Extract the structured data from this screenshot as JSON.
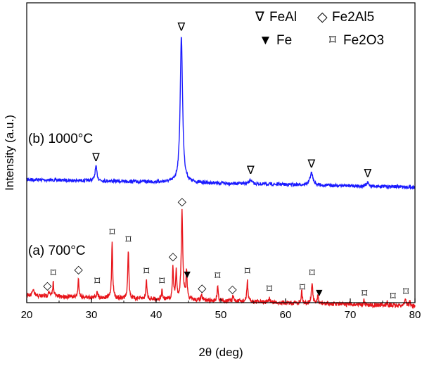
{
  "chart_data": {
    "type": "line",
    "xlabel": "2θ (deg)",
    "ylabel": "Intensity (a.u.)",
    "xlim": [
      20,
      80
    ],
    "x_ticks": [
      20,
      30,
      40,
      50,
      60,
      70,
      80
    ],
    "y_ticks_labeled": false,
    "grid": false,
    "legend": {
      "placement": "top-right",
      "entries": [
        {
          "symbol": "∇",
          "label": "FeAl"
        },
        {
          "symbol": "◇",
          "label": "Fe2Al5"
        },
        {
          "symbol": "▼",
          "label": "Fe"
        },
        {
          "symbol": "⌑",
          "label": "Fe2O3"
        }
      ]
    },
    "series": [
      {
        "name": "(b) 1000°C",
        "color": "#1a1aff",
        "baseline": 255,
        "noise": 2.2,
        "slope": -0.18,
        "peaks": [
          {
            "x": 30.7,
            "height": 20,
            "width": 0.18
          },
          {
            "x": 43.9,
            "height": 208,
            "width": 0.22
          },
          {
            "x": 54.6,
            "height": 6,
            "width": 0.2
          },
          {
            "x": 64.0,
            "height": 17,
            "width": 0.28
          },
          {
            "x": 72.7,
            "height": 5,
            "width": 0.2
          }
        ],
        "markers": [
          {
            "x": 30.7,
            "symbol": "∇"
          },
          {
            "x": 43.9,
            "symbol": "∇"
          },
          {
            "x": 54.6,
            "symbol": "∇"
          },
          {
            "x": 64.0,
            "symbol": "∇"
          },
          {
            "x": 72.7,
            "symbol": "∇"
          }
        ]
      },
      {
        "name": "(a) 700°C",
        "color": "#e8151b",
        "baseline": 420,
        "noise": 3.0,
        "slope": -0.25,
        "peaks": [
          {
            "x": 21.0,
            "height": 10,
            "width": 0.12
          },
          {
            "x": 23.4,
            "height": 8,
            "width": 0.1
          },
          {
            "x": 24.1,
            "height": 20,
            "width": 0.1
          },
          {
            "x": 28.0,
            "height": 26,
            "width": 0.1
          },
          {
            "x": 30.9,
            "height": 10,
            "width": 0.1
          },
          {
            "x": 33.2,
            "height": 80,
            "width": 0.1
          },
          {
            "x": 35.7,
            "height": 70,
            "width": 0.1
          },
          {
            "x": 38.5,
            "height": 26,
            "width": 0.1
          },
          {
            "x": 40.9,
            "height": 12,
            "width": 0.1
          },
          {
            "x": 42.6,
            "height": 45,
            "width": 0.1
          },
          {
            "x": 43.1,
            "height": 40,
            "width": 0.1
          },
          {
            "x": 44.0,
            "height": 125,
            "width": 0.14
          },
          {
            "x": 44.7,
            "height": 38,
            "width": 0.1
          },
          {
            "x": 47.0,
            "height": 8,
            "width": 0.1
          },
          {
            "x": 49.5,
            "height": 22,
            "width": 0.1
          },
          {
            "x": 51.9,
            "height": 8,
            "width": 0.1
          },
          {
            "x": 54.1,
            "height": 30,
            "width": 0.1
          },
          {
            "x": 57.5,
            "height": 6,
            "width": 0.1
          },
          {
            "x": 62.5,
            "height": 18,
            "width": 0.1
          },
          {
            "x": 64.1,
            "height": 30,
            "width": 0.12
          },
          {
            "x": 65.0,
            "height": 10,
            "width": 0.1
          },
          {
            "x": 72.1,
            "height": 6,
            "width": 0.1
          },
          {
            "x": 75.7,
            "height": 5,
            "width": 0.1
          },
          {
            "x": 78.5,
            "height": 10,
            "width": 0.15
          },
          {
            "x": 79.2,
            "height": 6,
            "width": 0.1
          }
        ],
        "markers": [
          {
            "x": 23.2,
            "symbol": "◇"
          },
          {
            "x": 24.1,
            "symbol": "⌑"
          },
          {
            "x": 28.0,
            "symbol": "◇"
          },
          {
            "x": 30.9,
            "symbol": "⌑"
          },
          {
            "x": 33.2,
            "symbol": "⌑"
          },
          {
            "x": 35.7,
            "symbol": "⌑"
          },
          {
            "x": 38.5,
            "symbol": "⌑"
          },
          {
            "x": 40.9,
            "symbol": "⌑"
          },
          {
            "x": 42.6,
            "symbol": "◇"
          },
          {
            "x": 44.0,
            "symbol": "◇"
          },
          {
            "x": 44.8,
            "symbol": "▼"
          },
          {
            "x": 47.1,
            "symbol": "◇"
          },
          {
            "x": 49.5,
            "symbol": "⌑"
          },
          {
            "x": 51.8,
            "symbol": "◇"
          },
          {
            "x": 54.1,
            "symbol": "⌑"
          },
          {
            "x": 57.5,
            "symbol": "⌑"
          },
          {
            "x": 62.6,
            "symbol": "⌑"
          },
          {
            "x": 64.1,
            "symbol": "⌑"
          },
          {
            "x": 65.2,
            "symbol": "▼"
          },
          {
            "x": 72.2,
            "symbol": "⌑"
          },
          {
            "x": 76.6,
            "symbol": "⌑"
          },
          {
            "x": 78.6,
            "symbol": "⌑"
          }
        ]
      }
    ]
  }
}
